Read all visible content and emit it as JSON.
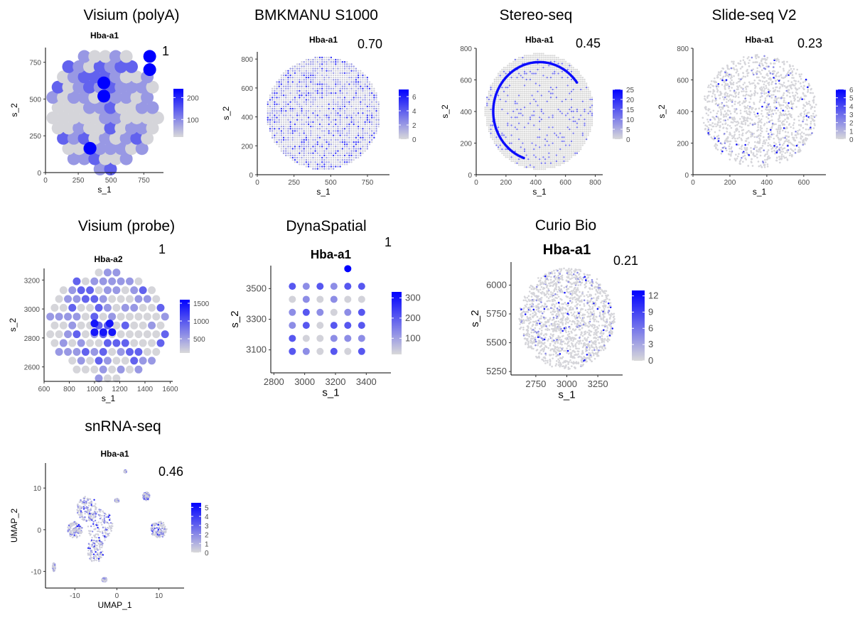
{
  "figure": {
    "background": "#ffffff"
  },
  "colors": {
    "low": "#d9d9d9",
    "high": "#0000ff"
  },
  "chart_data": [
    {
      "type": "scatter",
      "platform": "Visium (polyA)",
      "title": "Hba-a1",
      "score": "1",
      "xlabel": "s_1",
      "ylabel": "s_2",
      "xlim": [
        0,
        900
      ],
      "ylim": [
        0,
        850
      ],
      "xticks": [
        0,
        250,
        500,
        750
      ],
      "yticks": [
        0,
        250,
        500,
        750
      ],
      "legend": {
        "min": 20,
        "max": 240,
        "ticks": [
          100,
          200
        ]
      },
      "pattern": "hex",
      "spacing": 80,
      "hot": [
        [
          445,
          600,
          240
        ],
        [
          445,
          500,
          230
        ],
        [
          340,
          160,
          230
        ],
        [
          795,
          790,
          230
        ],
        [
          795,
          700,
          230
        ],
        [
          600,
          900,
          180
        ],
        [
          450,
          900,
          170
        ]
      ]
    },
    {
      "type": "scatter",
      "platform": "BMKMANU S1000",
      "title": "Hba-a1",
      "score": "0.70",
      "xlabel": "s_1",
      "ylabel": "s_2",
      "xlim": [
        0,
        900
      ],
      "ylim": [
        0,
        850
      ],
      "xticks": [
        0,
        250,
        500,
        750
      ],
      "yticks": [
        0,
        200,
        400,
        600,
        800
      ],
      "legend": {
        "min": 0,
        "max": 7,
        "ticks": [
          0,
          2,
          4,
          6
        ]
      },
      "pattern": "dense",
      "spacing": 22
    },
    {
      "type": "scatter",
      "platform": "Stereo-seq",
      "title": "Hba-a1",
      "score": "0.45",
      "xlabel": "s_1",
      "ylabel": "s_2",
      "xlim": [
        0,
        850
      ],
      "ylim": [
        0,
        800
      ],
      "xticks": [
        0,
        200,
        400,
        600,
        800
      ],
      "yticks": [
        0,
        200,
        400,
        600,
        800
      ],
      "legend": {
        "min": 0,
        "max": 25,
        "ticks": [
          0,
          5,
          10,
          15,
          20,
          25
        ]
      },
      "pattern": "dense",
      "spacing": 18
    },
    {
      "type": "scatter",
      "platform": "Slide-seq V2",
      "title": "Hba-a1",
      "score": "0.23",
      "xlabel": "s_1",
      "ylabel": "s_2",
      "xlim": [
        0,
        720
      ],
      "ylim": [
        0,
        800
      ],
      "xticks": [
        0,
        200,
        400,
        600
      ],
      "yticks": [
        0,
        200,
        400,
        600,
        800
      ],
      "legend": {
        "min": 0,
        "max": 6,
        "ticks": [
          0,
          1,
          2,
          3,
          4,
          5,
          6
        ]
      },
      "pattern": "random",
      "count": 1400
    },
    {
      "type": "scatter",
      "platform": "Visium (probe)",
      "title": "Hba-a2",
      "score": "1",
      "xlabel": "s_1",
      "ylabel": "s_2",
      "xlim": [
        600,
        1620
      ],
      "ylim": [
        2500,
        3280
      ],
      "xticks": [
        600,
        800,
        1000,
        1200,
        1400,
        1600
      ],
      "yticks": [
        2600,
        2800,
        3000,
        3200
      ],
      "legend": {
        "min": 100,
        "max": 1600,
        "ticks": [
          500,
          1000,
          1500
        ]
      },
      "pattern": "hex",
      "spacing": 70
    },
    {
      "type": "scatter",
      "platform": "DynaSpatial",
      "title": "Hba-a1",
      "score": "1",
      "xlabel": "s_1",
      "ylabel": "s_2",
      "xlim": [
        2780,
        3560
      ],
      "ylim": [
        2950,
        3650
      ],
      "xticks": [
        2800,
        3000,
        3200,
        3400
      ],
      "yticks": [
        3100,
        3300,
        3500
      ],
      "legend": {
        "min": 20,
        "max": 330,
        "ticks": [
          100,
          200,
          300
        ]
      },
      "pattern": "grid",
      "spacing": 100
    },
    {
      "type": "scatter",
      "platform": "Curio Bio",
      "title": "Hba-a1",
      "score": "0.21",
      "xlabel": "s_1",
      "ylabel": "s_2",
      "xlim": [
        2550,
        3450
      ],
      "ylim": [
        5220,
        6200
      ],
      "xticks": [
        2750,
        3000,
        3250
      ],
      "yticks": [
        5250,
        5500,
        5750,
        6000
      ],
      "legend": {
        "min": 0,
        "max": 13,
        "ticks": [
          0,
          3,
          6,
          9,
          12
        ]
      },
      "pattern": "random",
      "count": 1600
    },
    {
      "type": "scatter",
      "platform": "snRNA-seq",
      "title": "Hba-a1",
      "score": "0.46",
      "xlabel": "UMAP_1",
      "ylabel": "UMAP_2",
      "xlim": [
        -17,
        16
      ],
      "ylim": [
        -14,
        16
      ],
      "xticks": [
        -10,
        0,
        10
      ],
      "yticks": [
        -10,
        0,
        10
      ],
      "legend": {
        "min": 0,
        "max": 5.5,
        "ticks": [
          0,
          1,
          2,
          3,
          4,
          5
        ]
      },
      "pattern": "umap",
      "count": 1300
    }
  ]
}
